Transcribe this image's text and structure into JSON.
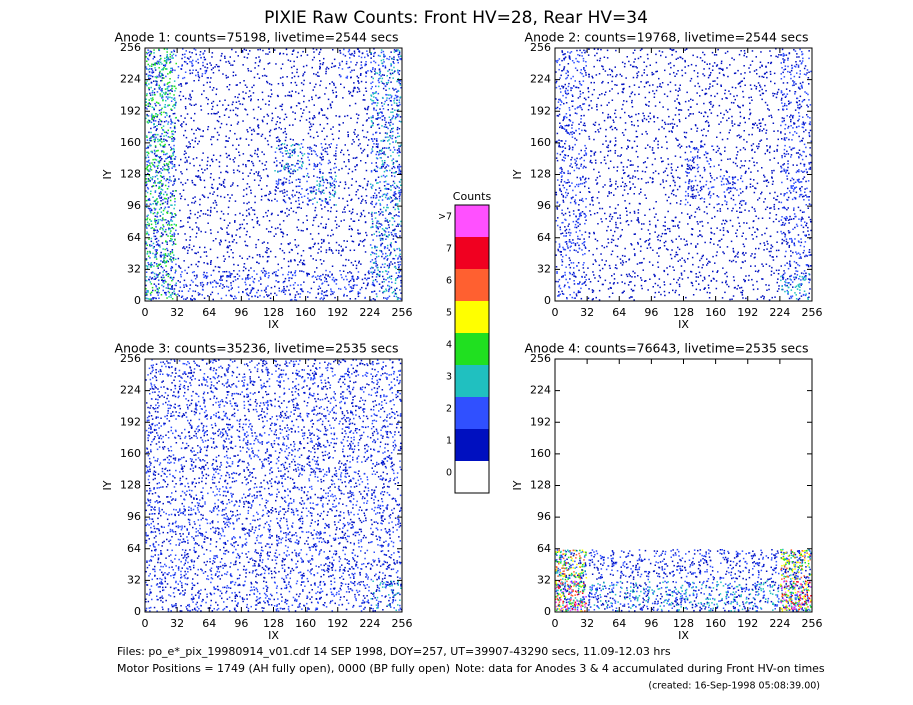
{
  "title": "PIXIE Raw Counts:  Front HV=28, Rear HV=34",
  "chart_data": [
    {
      "type": "heatmap",
      "title": "Anode 1: counts=75198, livetime=2544 secs",
      "xlabel": "IX",
      "ylabel": "IY",
      "xlim": [
        0,
        256
      ],
      "ylim": [
        0,
        256
      ],
      "xticks": [
        0,
        32,
        64,
        96,
        128,
        160,
        192,
        224,
        256
      ],
      "yticks": [
        0,
        32,
        64,
        96,
        128,
        160,
        192,
        224,
        256
      ],
      "cells": [
        [
          4,
          2,
          1,
          1,
          1,
          1,
          2,
          3
        ],
        [
          4,
          1,
          1,
          1,
          1,
          1,
          1,
          3
        ],
        [
          4,
          1,
          1,
          1,
          1,
          1,
          1,
          3
        ],
        [
          4,
          1,
          1,
          1,
          3,
          2,
          1,
          3
        ],
        [
          4,
          1,
          1,
          1,
          2,
          3,
          1,
          3
        ],
        [
          4,
          1,
          1,
          1,
          1,
          1,
          1,
          3
        ],
        [
          4,
          1,
          1,
          1,
          1,
          1,
          1,
          3
        ],
        [
          4,
          2,
          2,
          2,
          2,
          2,
          2,
          3
        ]
      ]
    },
    {
      "type": "heatmap",
      "title": "Anode 2: counts=19768, livetime=2544 secs",
      "xlabel": "IX",
      "ylabel": "IY",
      "xlim": [
        0,
        256
      ],
      "ylim": [
        0,
        256
      ],
      "xticks": [
        0,
        32,
        64,
        96,
        128,
        160,
        192,
        224,
        256
      ],
      "yticks": [
        0,
        32,
        64,
        96,
        128,
        160,
        192,
        224,
        256
      ],
      "cells": [
        [
          2,
          1,
          1,
          1,
          1,
          1,
          1,
          2
        ],
        [
          2,
          1,
          1,
          1,
          1,
          1,
          1,
          2
        ],
        [
          2,
          1,
          1,
          1,
          1,
          1,
          1,
          2
        ],
        [
          2,
          1,
          1,
          1,
          2,
          1,
          1,
          2
        ],
        [
          2,
          1,
          1,
          1,
          2,
          2,
          1,
          2
        ],
        [
          2,
          1,
          1,
          1,
          1,
          1,
          1,
          2
        ],
        [
          2,
          1,
          1,
          1,
          1,
          1,
          1,
          2
        ],
        [
          2,
          1,
          1,
          1,
          1,
          1,
          1,
          3
        ]
      ]
    },
    {
      "type": "heatmap",
      "title": "Anode 3: counts=35236, livetime=2535 secs",
      "xlabel": "IX",
      "ylabel": "IY",
      "xlim": [
        0,
        256
      ],
      "ylim": [
        0,
        256
      ],
      "xticks": [
        0,
        32,
        64,
        96,
        128,
        160,
        192,
        224,
        256
      ],
      "yticks": [
        0,
        32,
        64,
        96,
        128,
        160,
        192,
        224,
        256
      ],
      "cells": [
        [
          2,
          2,
          2,
          2,
          2,
          2,
          2,
          2
        ],
        [
          2,
          2,
          2,
          2,
          2,
          2,
          2,
          2
        ],
        [
          2,
          2,
          2,
          2,
          2,
          2,
          2,
          2
        ],
        [
          2,
          2,
          2,
          2,
          2,
          2,
          2,
          2
        ],
        [
          2,
          2,
          2,
          2,
          2,
          2,
          2,
          2
        ],
        [
          2,
          2,
          2,
          2,
          2,
          2,
          2,
          2
        ],
        [
          2,
          2,
          2,
          2,
          2,
          2,
          2,
          2
        ],
        [
          2,
          2,
          2,
          2,
          2,
          2,
          2,
          3
        ]
      ]
    },
    {
      "type": "heatmap",
      "title": "Anode 4: counts=76643, livetime=2535 secs",
      "xlabel": "IX",
      "ylabel": "IY",
      "xlim": [
        0,
        256
      ],
      "ylim": [
        0,
        256
      ],
      "xticks": [
        0,
        32,
        64,
        96,
        128,
        160,
        192,
        224,
        256
      ],
      "yticks": [
        0,
        32,
        64,
        96,
        128,
        160,
        192,
        224,
        256
      ],
      "cells": [
        [
          0,
          0,
          0,
          0,
          0,
          0,
          0,
          0
        ],
        [
          0,
          0,
          0,
          0,
          0,
          0,
          0,
          0
        ],
        [
          0,
          0,
          0,
          0,
          0,
          0,
          0,
          0
        ],
        [
          0,
          0,
          0,
          0,
          0,
          0,
          0,
          0
        ],
        [
          0,
          0,
          0,
          0,
          0,
          0,
          0,
          0
        ],
        [
          0,
          0,
          0,
          0,
          0,
          0,
          0,
          0
        ],
        [
          6,
          2,
          2,
          2,
          2,
          2,
          2,
          6
        ],
        [
          8,
          3,
          3,
          3,
          3,
          3,
          3,
          8
        ]
      ]
    }
  ],
  "colorbar": {
    "title": "Counts",
    "labels": [
      "0",
      "1",
      "2",
      "3",
      "4",
      "5",
      "6",
      "7",
      ">7"
    ],
    "colors": [
      "#ffffff",
      "#0010c0",
      "#3050ff",
      "#20c0c0",
      "#20e020",
      "#ffff00",
      "#ff6030",
      "#f00020",
      "#ff50ff"
    ]
  },
  "footer": {
    "files": "Files: po_e*_pix_19980914_v01.cdf    14 SEP 1998, DOY=257, UT=39907-43290 secs, 11.09-12.03 hrs",
    "motor": "Motor Positions = 1749 (AH fully open), 0000 (BP fully open)",
    "note": "Note: data for Anodes 3 & 4 accumulated during Front HV-on times",
    "created": "(created: 16-Sep-1998 05:08:39.00)"
  }
}
